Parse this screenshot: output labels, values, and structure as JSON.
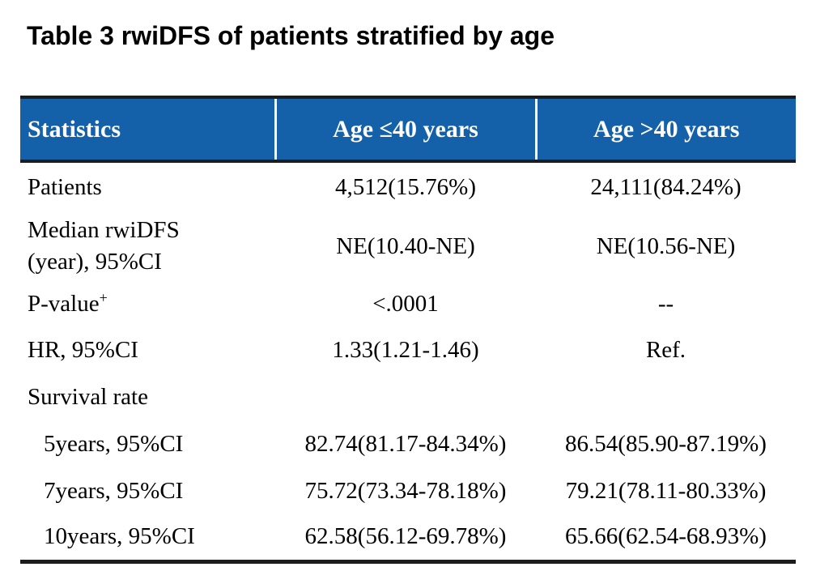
{
  "title": "Table 3 rwiDFS of patients stratified by age",
  "colors": {
    "header-bg": "#1561a9",
    "header-text": "#ffffff",
    "border": "#1c1c1c",
    "body-text": "#000000",
    "page-bg": "#ffffff"
  },
  "table": {
    "headers": [
      "Statistics",
      "Age ≤40 years",
      "Age >40 years"
    ],
    "rows": [
      {
        "label": "Patients",
        "values": [
          "4,512(15.76%)",
          "24,111(84.24%)"
        ]
      },
      {
        "label_lines": [
          "Median rwiDFS",
          "(year), 95%CI"
        ],
        "values": [
          "NE(10.40-NE)",
          "NE(10.56-NE)"
        ]
      },
      {
        "label": "P-value",
        "label_sup": "+",
        "values": [
          "<.0001",
          "--"
        ]
      },
      {
        "label": "HR, 95%CI",
        "values": [
          "1.33(1.21-1.46)",
          "Ref."
        ]
      },
      {
        "label": "Survival rate",
        "values": [
          "",
          ""
        ]
      },
      {
        "label": "5years, 95%CI",
        "values": [
          "82.74(81.17-84.34%)",
          "86.54(85.90-87.19%)"
        ],
        "indent": true
      },
      {
        "label": "7years, 95%CI",
        "values": [
          "75.72(73.34-78.18%)",
          "79.21(78.11-80.33%)"
        ],
        "indent": true
      },
      {
        "label": "10years, 95%CI",
        "values": [
          "62.58(56.12-69.78%)",
          "65.66(62.54-68.93%)"
        ],
        "indent": true
      }
    ]
  }
}
